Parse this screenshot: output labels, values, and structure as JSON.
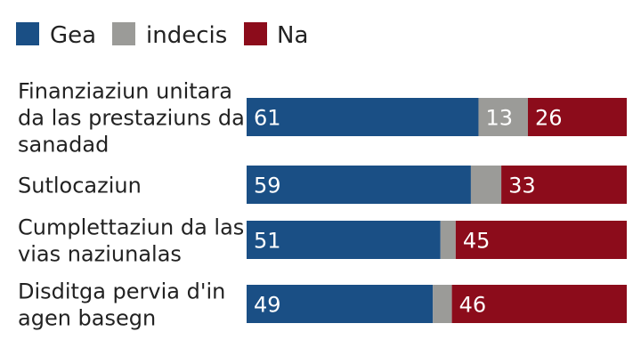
{
  "chart_data": {
    "type": "bar",
    "orientation": "horizontal",
    "stacked": true,
    "percent": true,
    "legend_position": "top-left",
    "grid": false,
    "xlim": [
      0,
      100
    ],
    "categories": [
      [
        "Finanziaziun unitara",
        "da las prestaziuns da",
        "sanadad"
      ],
      [
        "Sutlocaziun"
      ],
      [
        "Cumplettaziun da las",
        "vias naziunalas"
      ],
      [
        "Disditga pervia d'in",
        "agen basegn"
      ]
    ],
    "series": [
      {
        "name": "Gea",
        "color": "#1a4f85",
        "values": [
          61,
          59,
          51,
          49
        ],
        "labels": [
          "61",
          "59",
          "51",
          "49"
        ]
      },
      {
        "name": "indecis",
        "color": "#9b9b98",
        "values": [
          13,
          8,
          4,
          5
        ],
        "labels": [
          "13",
          "",
          "",
          ""
        ]
      },
      {
        "name": "Na",
        "color": "#8c0c1b",
        "values": [
          26,
          33,
          45,
          46
        ],
        "labels": [
          "26",
          "33",
          "45",
          "46"
        ]
      }
    ]
  }
}
